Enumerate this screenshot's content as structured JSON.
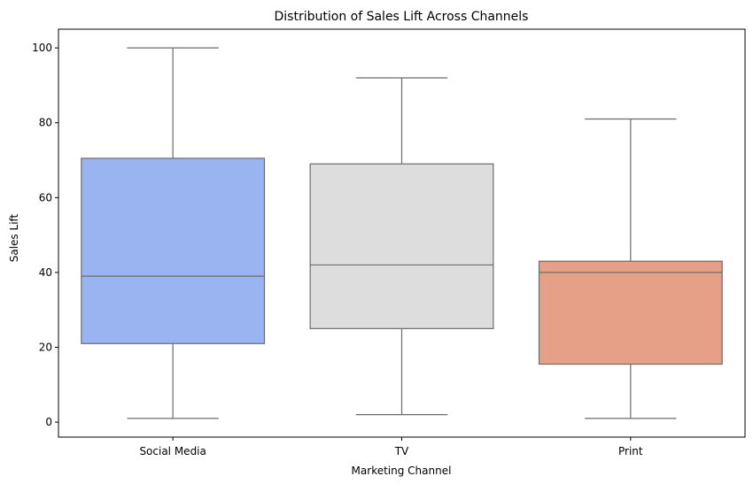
{
  "chart_data": {
    "type": "box",
    "title": "Distribution of Sales Lift Across Channels",
    "xlabel": "Marketing Channel",
    "ylabel": "Sales Lift",
    "ylim": [
      -4,
      105
    ],
    "yticks": [
      0,
      20,
      40,
      60,
      80,
      100
    ],
    "grid": false,
    "categories": [
      "Social Media",
      "TV",
      "Print"
    ],
    "boxes": [
      {
        "category": "Social Media",
        "min": 1,
        "q1": 21,
        "median": 39,
        "q3": 70.5,
        "max": 100,
        "color": "#9ab4f2"
      },
      {
        "category": "TV",
        "min": 2,
        "q1": 25,
        "median": 42,
        "q3": 69,
        "max": 92,
        "color": "#dddddd"
      },
      {
        "category": "Print",
        "min": 1,
        "q1": 15.5,
        "median": 40,
        "q3": 43,
        "max": 81,
        "color": "#e6a088"
      }
    ],
    "line_color": "#6b6b6b"
  }
}
